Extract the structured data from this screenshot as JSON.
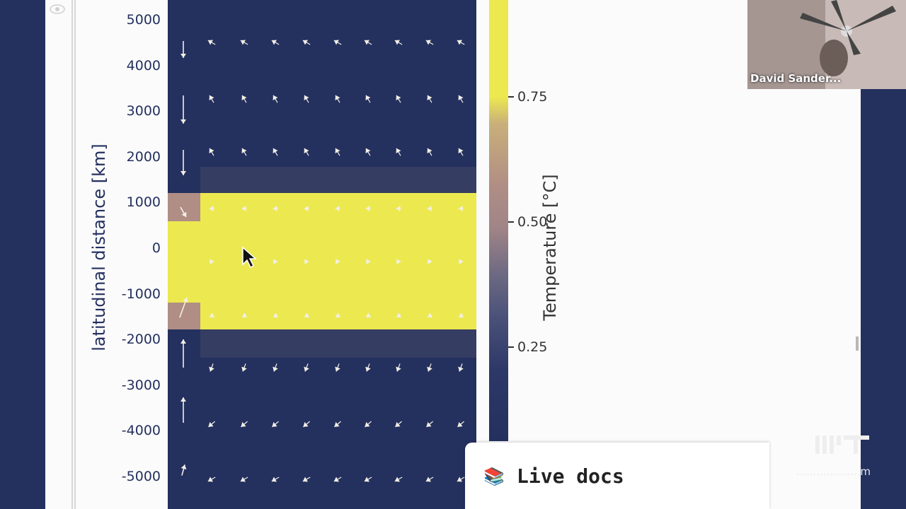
{
  "plot": {
    "ylabel": "latitudinal distance [km]",
    "yticks": [
      "5000",
      "4000",
      "3000",
      "2000",
      "1000",
      "0",
      "-1000",
      "-2000",
      "-3000",
      "-4000",
      "-5000"
    ]
  },
  "colorbar": {
    "label": "Temperature [°C]",
    "ticks": [
      "0.75",
      "0.50",
      "0.25"
    ]
  },
  "video": {
    "participant_name": "David Sander..."
  },
  "live_docs": {
    "icon": "📚",
    "label": "Live docs"
  },
  "watermark": {
    "text": "...................m"
  },
  "colors": {
    "navy": "#24305e",
    "yellow": "#ece850",
    "tan": "#b08e85",
    "slate": "#353d63"
  },
  "chart_data": {
    "type": "heatmap",
    "ylabel": "latitudinal distance [km]",
    "colorbar_label": "Temperature [°C]",
    "ylim": [
      -5300,
      5400
    ],
    "colorbar_ticks": [
      0.75,
      0.5,
      0.25
    ],
    "bands": [
      {
        "y_min": -1800,
        "y_max": 1200,
        "value": 1.0,
        "x_start": "inflow"
      },
      {
        "y_min": 1200,
        "y_max": 1800,
        "value": 0.1,
        "x_start": "interior"
      },
      {
        "y_min": -2400,
        "y_max": -1800,
        "value": 0.1,
        "x_start": "interior"
      },
      {
        "y_min": 600,
        "y_max": 1200,
        "value": 0.5,
        "x_start": "boundary"
      },
      {
        "y_min": -1800,
        "y_max": -1200,
        "value": 0.5,
        "x_start": "boundary"
      }
    ]
  }
}
